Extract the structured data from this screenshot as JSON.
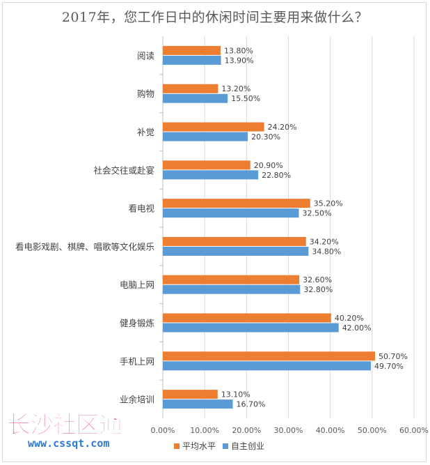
{
  "chart_data": {
    "type": "bar",
    "orientation": "horizontal",
    "title": "2017年，您工作日中的休闲时间主要用来做什么？",
    "categories": [
      "阅读",
      "购物",
      "补觉",
      "社会交往或赴宴",
      "看电视",
      "看电影戏剧、棋牌、唱歌等文化娱乐",
      "电脑上网",
      "健身锻炼",
      "手机上网",
      "业余培训"
    ],
    "series": [
      {
        "name": "平均水平",
        "color": "#ed7d31",
        "values": [
          13.8,
          13.2,
          24.2,
          20.9,
          35.2,
          34.2,
          32.6,
          40.2,
          50.7,
          13.1
        ],
        "labels": [
          "13.80%",
          "13.20%",
          "24.20%",
          "20.90%",
          "35.20%",
          "34.20%",
          "32.60%",
          "40.20%",
          "50.70%",
          "13.10%"
        ]
      },
      {
        "name": "自主创业",
        "color": "#5b9bd5",
        "values": [
          13.9,
          15.5,
          20.3,
          22.8,
          32.5,
          34.8,
          32.8,
          42.0,
          49.7,
          16.7
        ],
        "labels": [
          "13.90%",
          "15.50%",
          "20.30%",
          "22.80%",
          "32.50%",
          "34.80%",
          "32.80%",
          "42.00%",
          "49.70%",
          "16.70%"
        ]
      }
    ],
    "xlim": [
      0,
      60
    ],
    "xticks": [
      "0.00%",
      "10.00%",
      "20.00%",
      "30.00%",
      "40.00%",
      "50.00%",
      "60.00%"
    ],
    "grid": true,
    "legend": "bottom"
  },
  "watermark": {
    "main": "长沙社区通",
    "sub": "www.cssqt.com"
  }
}
